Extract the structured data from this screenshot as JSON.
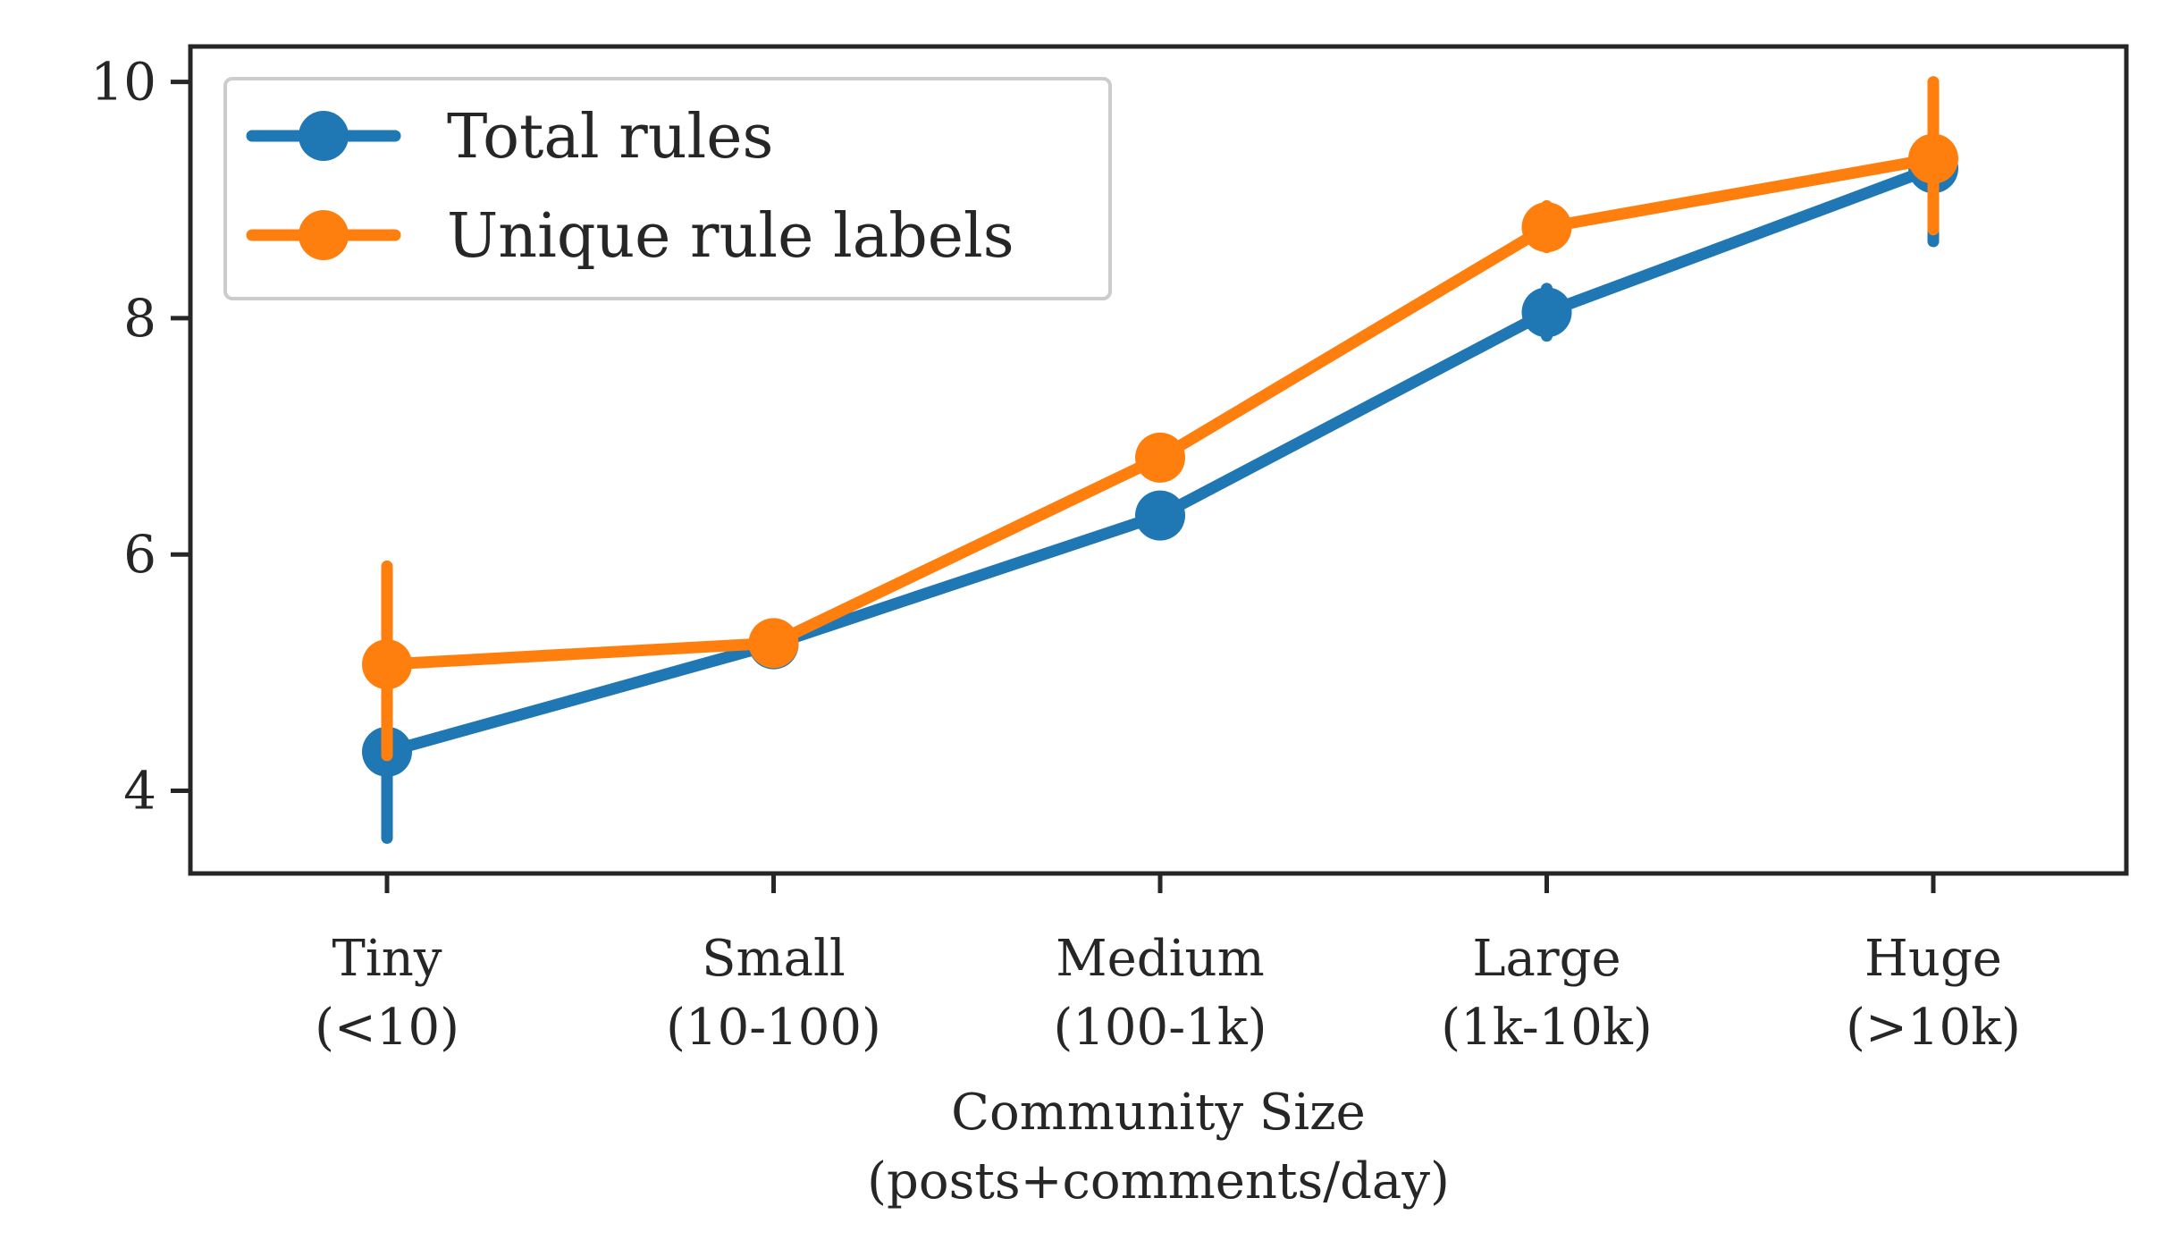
{
  "chart_data": {
    "type": "line",
    "title": "",
    "xlabel_lines": [
      "Community Size",
      "(posts+comments/day)"
    ],
    "ylabel": "",
    "categories": [
      {
        "name": "Tiny",
        "range": "(<10)"
      },
      {
        "name": "Small",
        "range": "(10-100)"
      },
      {
        "name": "Medium",
        "range": "(100-1k)"
      },
      {
        "name": "Large",
        "range": "(1k-10k)"
      },
      {
        "name": "Huge",
        "range": "(>10k)"
      }
    ],
    "ylim": [
      3.3,
      10.3
    ],
    "yticks": [
      "4",
      "6",
      "8",
      "10"
    ],
    "grid": false,
    "legend_position": "top-left",
    "series": [
      {
        "name": "Total rules",
        "color": "#1f77b4",
        "values": [
          4.33,
          5.24,
          6.33,
          8.05,
          9.27
        ],
        "ci_low": [
          3.6,
          5.1,
          6.2,
          7.85,
          8.65
        ],
        "ci_high": [
          5.0,
          5.4,
          6.45,
          8.25,
          9.85
        ]
      },
      {
        "name": "Unique rule labels",
        "color": "#ff7f0e",
        "values": [
          5.07,
          5.25,
          6.82,
          8.77,
          9.35
        ],
        "ci_low": [
          4.3,
          5.1,
          6.7,
          8.6,
          8.75
        ],
        "ci_high": [
          5.9,
          5.4,
          6.95,
          8.95,
          10.0
        ]
      }
    ]
  }
}
